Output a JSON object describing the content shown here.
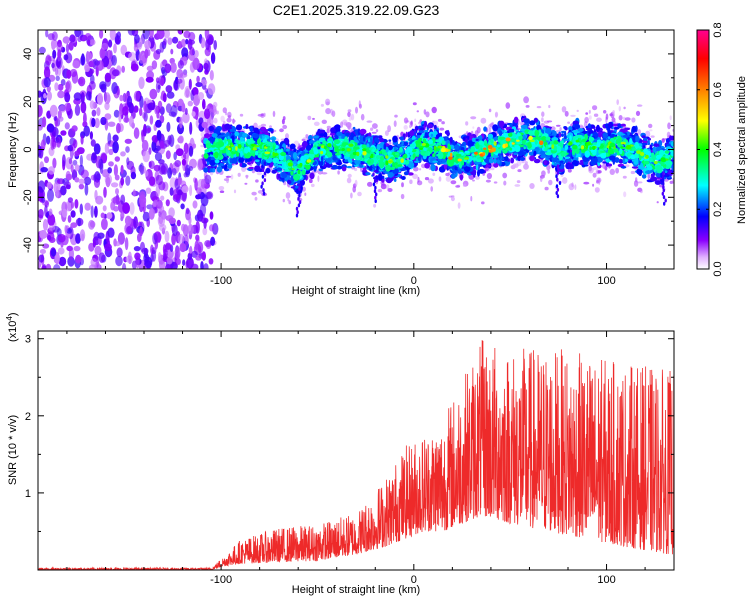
{
  "title": "C2E1.2025.319.22.09.G23",
  "chart_data": [
    {
      "type": "heatmap",
      "title": "C2E1.2025.319.22.09.G23",
      "xlabel": "Height of straight line (km)",
      "ylabel": "Frequency (Hz)",
      "xlim": [
        -195,
        135
      ],
      "ylim": [
        -50,
        50
      ],
      "x_ticks": [
        -100,
        0,
        100
      ],
      "y_ticks": [
        -40,
        -20,
        0,
        20,
        40
      ],
      "x_tick_labels": [
        "-100",
        "0",
        "100"
      ],
      "y_tick_labels": [
        "-40",
        "-20",
        "0",
        "20",
        "40"
      ],
      "noise_region_x": [
        -195,
        -107
      ],
      "ridge_center_frequency": [
        {
          "x": -105,
          "y": 0
        },
        {
          "x": -90,
          "y": 1
        },
        {
          "x": -75,
          "y": 0
        },
        {
          "x": -60,
          "y": -9
        },
        {
          "x": -50,
          "y": 0
        },
        {
          "x": -35,
          "y": 1
        },
        {
          "x": -20,
          "y": -3
        },
        {
          "x": -12,
          "y": -5
        },
        {
          "x": -5,
          "y": -3
        },
        {
          "x": 5,
          "y": 2
        },
        {
          "x": 15,
          "y": 0
        },
        {
          "x": 22,
          "y": -4
        },
        {
          "x": 35,
          "y": -1
        },
        {
          "x": 45,
          "y": 2
        },
        {
          "x": 55,
          "y": 4
        },
        {
          "x": 65,
          "y": 4
        },
        {
          "x": 75,
          "y": -1
        },
        {
          "x": 85,
          "y": 3
        },
        {
          "x": 95,
          "y": 0
        },
        {
          "x": 105,
          "y": 2
        },
        {
          "x": 115,
          "y": 0
        },
        {
          "x": 125,
          "y": -6
        },
        {
          "x": 133,
          "y": -3
        }
      ],
      "colorbar": {
        "label": "Normalized spectral amplitude",
        "range": [
          0,
          0.8
        ],
        "ticks": [
          0.0,
          0.2,
          0.4,
          0.6,
          0.8
        ],
        "tick_labels": [
          "0.0",
          "0.2",
          "0.4",
          "0.6",
          "0.8"
        ],
        "colors": [
          "#ffffff",
          "#8a00ff",
          "#0000ff",
          "#00ffff",
          "#00ff00",
          "#ffff00",
          "#ff8000",
          "#ff0000",
          "#ff0080"
        ]
      }
    },
    {
      "type": "line",
      "xlabel": "Height of straight line (km)",
      "ylabel": "SNR (10 * v/v)",
      "y_scale_label": "(x10",
      "y_scale_exponent": "4",
      "xlim": [
        -195,
        135
      ],
      "ylim": [
        0,
        3.1
      ],
      "x_ticks": [
        -100,
        0,
        100
      ],
      "y_ticks": [
        1,
        2,
        3
      ],
      "x_tick_labels": [
        "-100",
        "0",
        "100"
      ],
      "y_tick_labels": [
        "1",
        "2",
        "3"
      ],
      "color": "#ee2a2a",
      "envelope": [
        {
          "x": -195,
          "base": 0.0,
          "peak": 0.03
        },
        {
          "x": -105,
          "base": 0.0,
          "peak": 0.03
        },
        {
          "x": -98,
          "base": 0.05,
          "peak": 0.2
        },
        {
          "x": -90,
          "base": 0.08,
          "peak": 0.4
        },
        {
          "x": -70,
          "base": 0.1,
          "peak": 0.55
        },
        {
          "x": -50,
          "base": 0.12,
          "peak": 0.6
        },
        {
          "x": -30,
          "base": 0.2,
          "peak": 0.75
        },
        {
          "x": -15,
          "base": 0.3,
          "peak": 1.2
        },
        {
          "x": -5,
          "base": 0.4,
          "peak": 1.6
        },
        {
          "x": 5,
          "base": 0.5,
          "peak": 1.8
        },
        {
          "x": 15,
          "base": 0.5,
          "peak": 2.0
        },
        {
          "x": 25,
          "base": 0.6,
          "peak": 2.5
        },
        {
          "x": 35,
          "base": 0.7,
          "peak": 3.0
        },
        {
          "x": 50,
          "base": 0.6,
          "peak": 2.9
        },
        {
          "x": 70,
          "base": 0.5,
          "peak": 2.9
        },
        {
          "x": 90,
          "base": 0.4,
          "peak": 2.8
        },
        {
          "x": 110,
          "base": 0.3,
          "peak": 2.7
        },
        {
          "x": 133,
          "base": 0.2,
          "peak": 2.6
        }
      ]
    }
  ]
}
